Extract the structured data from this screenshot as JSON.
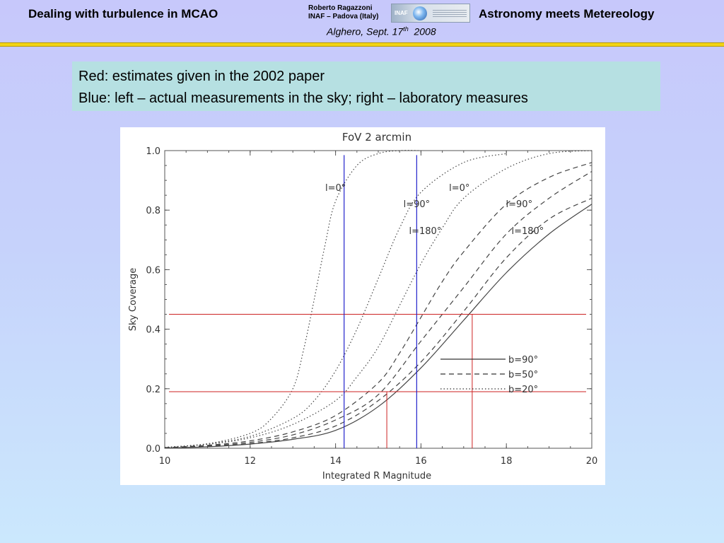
{
  "header": {
    "left_title": "Dealing with turbulence in MCAO",
    "right_title": "Astronomy meets Metereology",
    "author_name": "Roberto Ragazzoni",
    "author_affiliation": "INAF – Padova (Italy)",
    "location": "Alghero, Sept. 17",
    "location_sup": "th",
    "location_year": "2008",
    "logo_text": "INAF"
  },
  "notes": {
    "line1": "Red: estimates given in the 2002 paper",
    "line2": "Blue: left – actual measurements in the sky; right – laboratory measures"
  },
  "colors": {
    "red_lines": "#cc2222",
    "blue_lines": "#2222cc",
    "notes_bg": "#b6e0e2",
    "header_bar": "#f2d414"
  },
  "chart_data": {
    "type": "line",
    "title": "FoV 2 arcmin",
    "xlabel": "Integrated R Magnitude",
    "ylabel": "Sky Coverage",
    "xlim": [
      10,
      20
    ],
    "ylim": [
      0,
      1
    ],
    "x_ticks": [
      "10",
      "12",
      "14",
      "16",
      "18",
      "20"
    ],
    "y_ticks": [
      "0.0",
      "0.2",
      "0.4",
      "0.6",
      "0.8",
      "1.0"
    ],
    "legend": {
      "position": "bottom-right",
      "entries": [
        {
          "label": "b=90°",
          "style": "solid"
        },
        {
          "label": "b=50°",
          "style": "dashed"
        },
        {
          "label": "b=20°",
          "style": "dotted"
        }
      ]
    },
    "annotations": [
      {
        "text": "l=0°",
        "x": 14.0,
        "y": 0.865
      },
      {
        "text": "l=90°",
        "x": 15.9,
        "y": 0.81
      },
      {
        "text": "l=180°",
        "x": 16.1,
        "y": 0.72
      },
      {
        "text": "l=0°",
        "x": 16.9,
        "y": 0.865
      },
      {
        "text": "l=90°",
        "x": 18.3,
        "y": 0.81
      },
      {
        "text": "l=180°",
        "x": 18.5,
        "y": 0.72
      }
    ],
    "series": [
      {
        "style": "dotted",
        "x": [
          10,
          11,
          12,
          12.5,
          13,
          13.25,
          13.5,
          13.75,
          14,
          14.5,
          15,
          15.5,
          16
        ],
        "y": [
          0.003,
          0.015,
          0.05,
          0.1,
          0.2,
          0.33,
          0.5,
          0.68,
          0.83,
          0.95,
          0.99,
          1.0,
          1.0
        ]
      },
      {
        "style": "dotted",
        "x": [
          10,
          11,
          12,
          13,
          13.5,
          14,
          14.5,
          15,
          15.5,
          16,
          17,
          18
        ],
        "y": [
          0.003,
          0.015,
          0.04,
          0.1,
          0.16,
          0.26,
          0.4,
          0.57,
          0.74,
          0.86,
          0.96,
          0.99
        ]
      },
      {
        "style": "dotted",
        "x": [
          10,
          11,
          12,
          13,
          14,
          14.5,
          15,
          15.5,
          16,
          16.5,
          17,
          18,
          19,
          20
        ],
        "y": [
          0.003,
          0.013,
          0.035,
          0.08,
          0.16,
          0.24,
          0.34,
          0.48,
          0.62,
          0.74,
          0.84,
          0.94,
          0.99,
          1.0
        ]
      },
      {
        "style": "dashed",
        "x": [
          10,
          11,
          12,
          13,
          14,
          15,
          15.5,
          16,
          16.5,
          17,
          18,
          19,
          20
        ],
        "y": [
          0.002,
          0.01,
          0.025,
          0.055,
          0.11,
          0.22,
          0.32,
          0.44,
          0.56,
          0.66,
          0.82,
          0.91,
          0.96
        ]
      },
      {
        "style": "dashed",
        "x": [
          10,
          11,
          12,
          13,
          14,
          15,
          16,
          17,
          18,
          19,
          20
        ],
        "y": [
          0.002,
          0.008,
          0.02,
          0.045,
          0.095,
          0.18,
          0.36,
          0.54,
          0.72,
          0.84,
          0.93
        ]
      },
      {
        "style": "dashed",
        "x": [
          10,
          11,
          12,
          13,
          14,
          15,
          16,
          17,
          18,
          19,
          20
        ],
        "y": [
          0.001,
          0.006,
          0.016,
          0.035,
          0.075,
          0.16,
          0.29,
          0.46,
          0.64,
          0.77,
          0.84
        ]
      },
      {
        "style": "solid",
        "x": [
          10,
          11,
          12,
          13,
          14,
          15,
          16,
          17,
          18,
          19,
          20
        ],
        "y": [
          0.001,
          0.005,
          0.014,
          0.03,
          0.06,
          0.14,
          0.27,
          0.43,
          0.59,
          0.72,
          0.82
        ]
      }
    ],
    "reference_lines": {
      "red_horizontal_y": [
        0.45,
        0.19
      ],
      "red_vertical_x": [
        15.2,
        17.2
      ],
      "blue_vertical_x": [
        14.2,
        15.9
      ]
    }
  }
}
